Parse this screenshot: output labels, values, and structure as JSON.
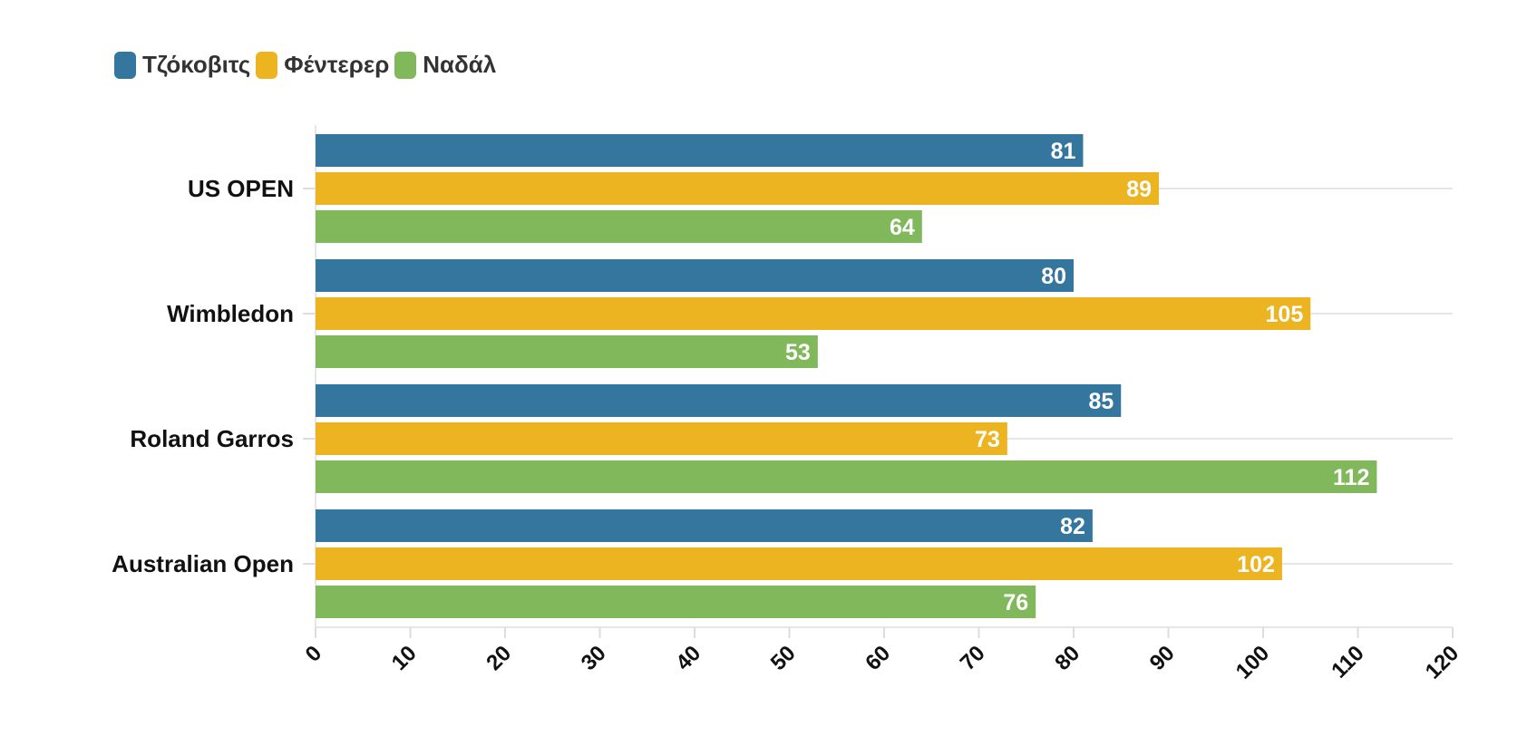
{
  "chart_data": {
    "type": "bar",
    "orientation": "horizontal",
    "categories": [
      "US OPEN",
      "Wimbledon",
      "Roland Garros",
      "Australian Open"
    ],
    "series": [
      {
        "name": "Τζόκοβιτς",
        "color": "#35769f",
        "values": [
          81,
          80,
          85,
          82
        ]
      },
      {
        "name": "Φέντερερ",
        "color": "#edb422",
        "values": [
          89,
          105,
          73,
          102
        ]
      },
      {
        "name": "Ναδάλ",
        "color": "#80b85b",
        "values": [
          64,
          53,
          112,
          76
        ]
      }
    ],
    "xlim": [
      0,
      120
    ],
    "xticks": [
      "0",
      "10",
      "20",
      "30",
      "40",
      "50",
      "60",
      "70",
      "80",
      "90",
      "100",
      "110",
      "120"
    ],
    "grid": true,
    "legend_position": "top-left",
    "data_labels": true
  }
}
